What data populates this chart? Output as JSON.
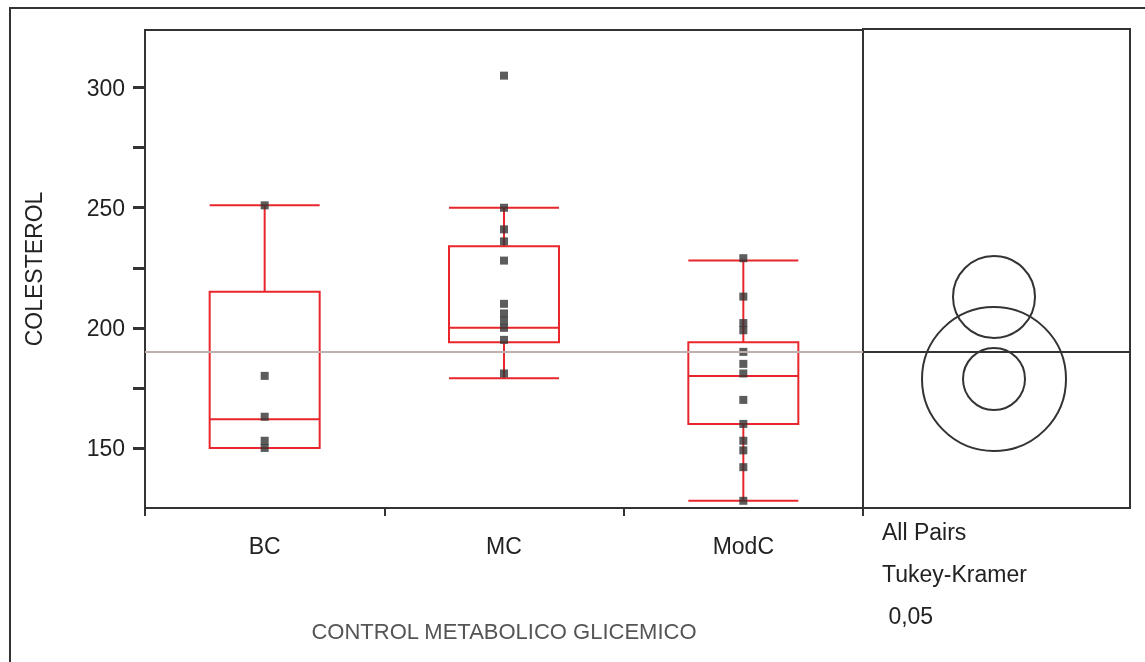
{
  "chart_data": {
    "type": "box",
    "xlabel": "CONTROL METABOLICO GLICEMICO",
    "ylabel": "COLESTEROL",
    "categories": [
      "BC",
      "MC",
      "ModC"
    ],
    "ylim": [
      125,
      324
    ],
    "yticks": [
      150,
      {
        "value": 175,
        "label": null
      },
      200,
      {
        "value": 225,
        "label": null
      },
      250,
      {
        "value": 275,
        "label": null
      },
      300
    ],
    "grid": false,
    "series": [
      {
        "color": "#e8262b",
        "boxes": [
          {
            "low": 150,
            "q1": 150,
            "median": 162,
            "q3": 215,
            "high": 251
          },
          {
            "low": 179,
            "q1": 194,
            "median": 200,
            "q3": 234,
            "high": 250
          },
          {
            "low": 128,
            "q1": 160,
            "median": 180,
            "q3": 194,
            "high": 228
          }
        ]
      },
      {
        "type": "scatter",
        "color": "#333333",
        "marker": "square",
        "x": [
          "BC",
          "BC",
          "BC",
          "BC",
          "BC",
          "MC",
          "MC",
          "MC",
          "MC",
          "MC",
          "MC",
          "MC",
          "MC",
          "MC",
          "MC",
          "MC",
          "ModC",
          "ModC",
          "ModC",
          "ModC",
          "ModC",
          "ModC",
          "ModC",
          "ModC",
          "ModC",
          "ModC",
          "ModC",
          "ModC",
          "ModC"
        ],
        "values": [
          251,
          180,
          163,
          153,
          150,
          305,
          250,
          241,
          236,
          228,
          210,
          206,
          203,
          200,
          195,
          181,
          229,
          213,
          202,
          199,
          190,
          185,
          181,
          170,
          160,
          153,
          149,
          142,
          128
        ]
      }
    ],
    "ref_lines": [
      {
        "axis": "y",
        "value": 190,
        "color": "#bfb0ae"
      }
    ],
    "annotations": [
      "All Pairs",
      "Tukey-Kramer",
      " 0,05"
    ]
  }
}
